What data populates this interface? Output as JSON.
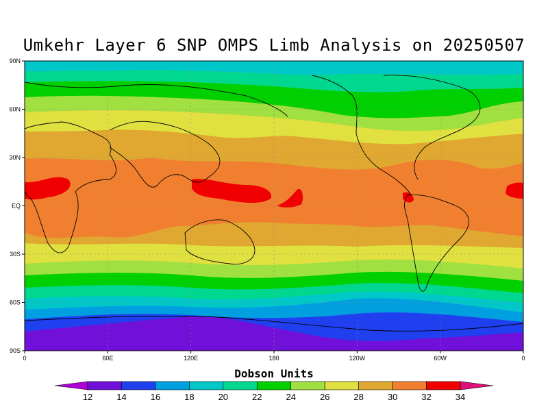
{
  "title": "Umkehr Layer 6 SNP OMPS Limb Analysis on 20250507",
  "units_label": "Dobson Units",
  "lat_ticks": [
    "90N",
    "60N",
    "30N",
    "EQ",
    "30S",
    "60S",
    "90S"
  ],
  "lon_ticks": [
    "0",
    "60E",
    "120E",
    "180",
    "120W",
    "60W",
    "0"
  ],
  "colorbar": {
    "levels": [
      "12",
      "14",
      "16",
      "18",
      "20",
      "22",
      "24",
      "26",
      "28",
      "30",
      "32",
      "34"
    ],
    "colors": [
      "#b000d8",
      "#7010d8",
      "#2040f0",
      "#00a0e0",
      "#00c8c8",
      "#00d890",
      "#00d000",
      "#a0e040",
      "#e0e040",
      "#e0a830",
      "#f08030",
      "#f00000",
      "#e0107a"
    ]
  },
  "colors": {
    "coast": "#000000",
    "grid": "#888888"
  }
}
